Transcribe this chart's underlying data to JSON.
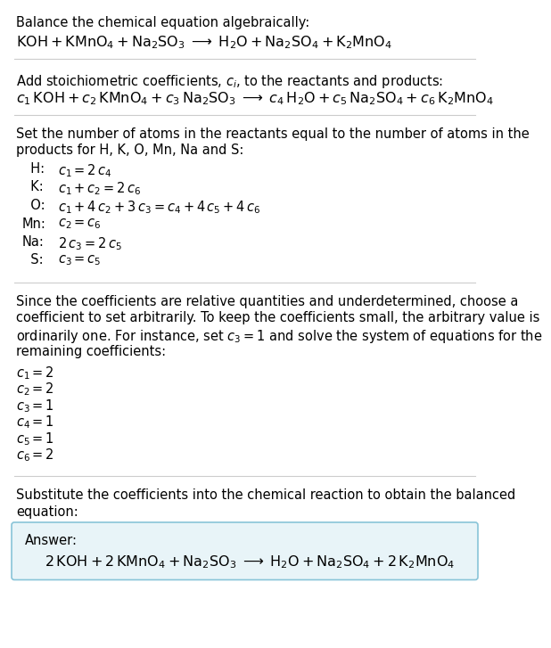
{
  "bg_color": "#ffffff",
  "text_color": "#000000",
  "answer_box_facecolor": "#e8f4f8",
  "answer_box_edgecolor": "#89c4d8",
  "line_color": "#cccccc",
  "fs": 10.5,
  "fs_math": 11.5,
  "sections": {
    "s1_text": "Balance the chemical equation algebraically:",
    "s1_eq": "$\\mathrm{KOH + KMnO_4 + Na_2SO_3 \\;\\longrightarrow\\; H_2O + Na_2SO_4 + K_2MnO_4}$",
    "s2_text": "Add stoichiometric coefficients, $c_i$, to the reactants and products:",
    "s2_eq": "$c_1\\,\\mathrm{KOH} + c_2\\,\\mathrm{KMnO_4} + c_3\\,\\mathrm{Na_2SO_3} \\;\\longrightarrow\\; c_4\\,\\mathrm{H_2O} + c_5\\,\\mathrm{Na_2SO_4} + c_6\\,\\mathrm{K_2MnO_4}$",
    "s3_line1": "Set the number of atoms in the reactants equal to the number of atoms in the",
    "s3_line2": "products for H, K, O, Mn, Na and S:",
    "eq_labels": [
      "  H:",
      "  K:",
      "  O:",
      "Mn:",
      "Na:",
      "  S:"
    ],
    "eq_math": [
      "$c_1 = 2\\,c_4$",
      "$c_1 + c_2 = 2\\,c_6$",
      "$c_1 + 4\\,c_2 + 3\\,c_3 = c_4 + 4\\,c_5 + 4\\,c_6$",
      "$c_2 = c_6$",
      "$2\\,c_3 = 2\\,c_5$",
      "$c_3 = c_5$"
    ],
    "s4_line1": "Since the coefficients are relative quantities and underdetermined, choose a",
    "s4_line2": "coefficient to set arbitrarily. To keep the coefficients small, the arbitrary value is",
    "s4_line3": "ordinarily one. For instance, set $c_3 = 1$ and solve the system of equations for the",
    "s4_line4": "remaining coefficients:",
    "coeff_list": [
      "$c_1 = 2$",
      "$c_2 = 2$",
      "$c_3 = 1$",
      "$c_4 = 1$",
      "$c_5 = 1$",
      "$c_6 = 2$"
    ],
    "s5_line1": "Substitute the coefficients into the chemical reaction to obtain the balanced",
    "s5_line2": "equation:",
    "answer_label": "Answer:",
    "answer_eq": "$2\\,\\mathrm{KOH} + 2\\,\\mathrm{KMnO_4} + \\mathrm{Na_2SO_3} \\;\\longrightarrow\\; \\mathrm{H_2O} + \\mathrm{Na_2SO_4} + 2\\,\\mathrm{K_2MnO_4}$"
  }
}
